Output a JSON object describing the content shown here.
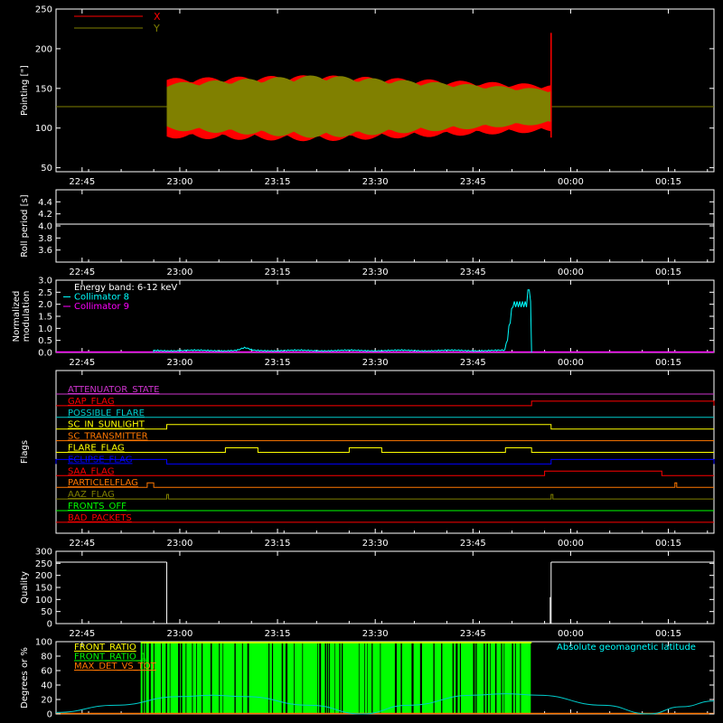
{
  "time_ticks": [
    "22:45",
    "23:00",
    "23:15",
    "23:30",
    "23:45",
    "00:00",
    "00:15"
  ],
  "chart_data": [
    {
      "type": "area",
      "ylabel": "Pointing [\"]",
      "ylim": [
        45,
        250
      ],
      "yticks": [
        50,
        100,
        150,
        200,
        250
      ],
      "legend": [
        {
          "label": "X",
          "color": "#ff0000"
        },
        {
          "label": "Y",
          "color": "#808000"
        }
      ],
      "baseline": 127,
      "band_start": "22:58",
      "band_end": "23:57",
      "x_band": {
        "center": 125,
        "half_start": 32,
        "half_end": 30
      },
      "y_band": {
        "center": 127,
        "half_start": 30,
        "half_mid": 40,
        "half_end": 22
      },
      "spike": {
        "time": "23:57",
        "max": 220,
        "min": 88
      }
    },
    {
      "type": "line",
      "ylabel": "Roll period [s]",
      "ylim": [
        3.4,
        4.6
      ],
      "yticks": [
        3.6,
        3.8,
        4.0,
        4.2,
        4.4
      ],
      "value": 4.03,
      "color": "#ffffff"
    },
    {
      "type": "line",
      "ylabel": "Normalized\nmodulation",
      "ylim": [
        0,
        3.0
      ],
      "yticks": [
        0.0,
        0.5,
        1.0,
        1.5,
        2.0,
        2.5,
        3.0
      ],
      "legend": [
        {
          "label": "Energy band: 6-12 keV",
          "color": "#ffffff"
        },
        {
          "label": "Collimator 8",
          "color": "#00ffff"
        },
        {
          "label": "Collimator 9",
          "color": "#ff00ff"
        }
      ],
      "series": [
        {
          "name": "Collimator 8",
          "color": "#00ffff",
          "start": "22:56",
          "end": "23:54",
          "base": 0.08,
          "bump_time": "23:10",
          "bump_val": 0.18,
          "rise_time": "23:50",
          "peak": 2.0,
          "max": 2.6
        },
        {
          "name": "Collimator 9",
          "color": "#ff00ff",
          "value": 0.0
        }
      ]
    },
    {
      "type": "table",
      "ylabel": "Flags",
      "flags": [
        {
          "name": "ATTENUATOR_STATE",
          "color": "#cc33cc",
          "segments": []
        },
        {
          "name": "GAP_FLAG",
          "color": "#ff0000",
          "segments": [
            [
              "23:54",
              "00:22"
            ]
          ]
        },
        {
          "name": "POSSIBLE_FLARE",
          "color": "#00cccc",
          "segments": []
        },
        {
          "name": "SC_IN_SUNLIGHT",
          "color": "#ffff00",
          "segments": [
            [
              "22:58",
              "23:57"
            ]
          ]
        },
        {
          "name": "SC_TRANSMITTER",
          "color": "#ff7700",
          "segments": []
        },
        {
          "name": "FLARE_FLAG",
          "color": "#ffff00",
          "segments": [
            [
              "23:07",
              "23:12"
            ],
            [
              "23:26",
              "23:31"
            ],
            [
              "23:50",
              "23:54"
            ]
          ]
        },
        {
          "name": "ECLIPSE_FLAG",
          "color": "#0000ff",
          "segments": [
            [
              "22:41",
              "22:58"
            ],
            [
              "23:57",
              "00:22"
            ]
          ]
        },
        {
          "name": "SAA_FLAG",
          "color": "#ff0000",
          "segments": [
            [
              "23:56",
              "00:14"
            ]
          ]
        },
        {
          "name": "PARTICLELFLAG",
          "color": "#ff7700",
          "segments": [
            [
              "22:55",
              "22:56"
            ],
            [
              "00:16",
              "00:16"
            ]
          ]
        },
        {
          "name": "AAZ_FLAG",
          "color": "#808000",
          "segments": [
            [
              "22:58",
              "22:58"
            ],
            [
              "23:57",
              "23:57"
            ]
          ]
        },
        {
          "name": "FRONTS_OFF",
          "color": "#00ff00",
          "segments": []
        },
        {
          "name": "BAD_PACKETS",
          "color": "#ff0000",
          "segments": []
        }
      ]
    },
    {
      "type": "line",
      "ylabel": "Quality",
      "ylim": [
        0,
        300
      ],
      "yticks": [
        0,
        50,
        100,
        150,
        200,
        250,
        300
      ],
      "color": "#ffffff",
      "segments": [
        {
          "start": "22:41",
          "end": "22:58",
          "value": 255
        },
        {
          "start": "23:57",
          "end": "00:22",
          "value": 255
        }
      ],
      "drops": [
        {
          "time": "23:57",
          "value": 110
        }
      ]
    },
    {
      "type": "area",
      "ylabel": "Degrees or %",
      "ylim": [
        0,
        100
      ],
      "yticks": [
        0,
        20,
        40,
        60,
        80,
        100
      ],
      "legend": [
        {
          "label": "FRONT_RATIO",
          "color": "#ffff00"
        },
        {
          "label": "FRONT_RATIO_1",
          "color": "#00ff00"
        },
        {
          "label": "MAX_DET_VS_TOT",
          "color": "#ff7700"
        }
      ],
      "right_label": {
        "label": "Absolute geomagnetic latitude",
        "color": "#00ffff"
      },
      "green_start": "22:54",
      "green_end": "23:54",
      "latitude": [
        {
          "t": "22:41",
          "v": 2
        },
        {
          "t": "22:50",
          "v": 12
        },
        {
          "t": "23:00",
          "v": 24
        },
        {
          "t": "23:05",
          "v": 26
        },
        {
          "t": "23:10",
          "v": 24
        },
        {
          "t": "23:20",
          "v": 12
        },
        {
          "t": "23:28",
          "v": 0
        },
        {
          "t": "23:35",
          "v": 12
        },
        {
          "t": "23:45",
          "v": 26
        },
        {
          "t": "23:50",
          "v": 28
        },
        {
          "t": "23:55",
          "v": 26
        },
        {
          "t": "00:05",
          "v": 12
        },
        {
          "t": "00:12",
          "v": 0
        },
        {
          "t": "00:17",
          "v": 10
        },
        {
          "t": "00:22",
          "v": 18
        }
      ]
    }
  ]
}
